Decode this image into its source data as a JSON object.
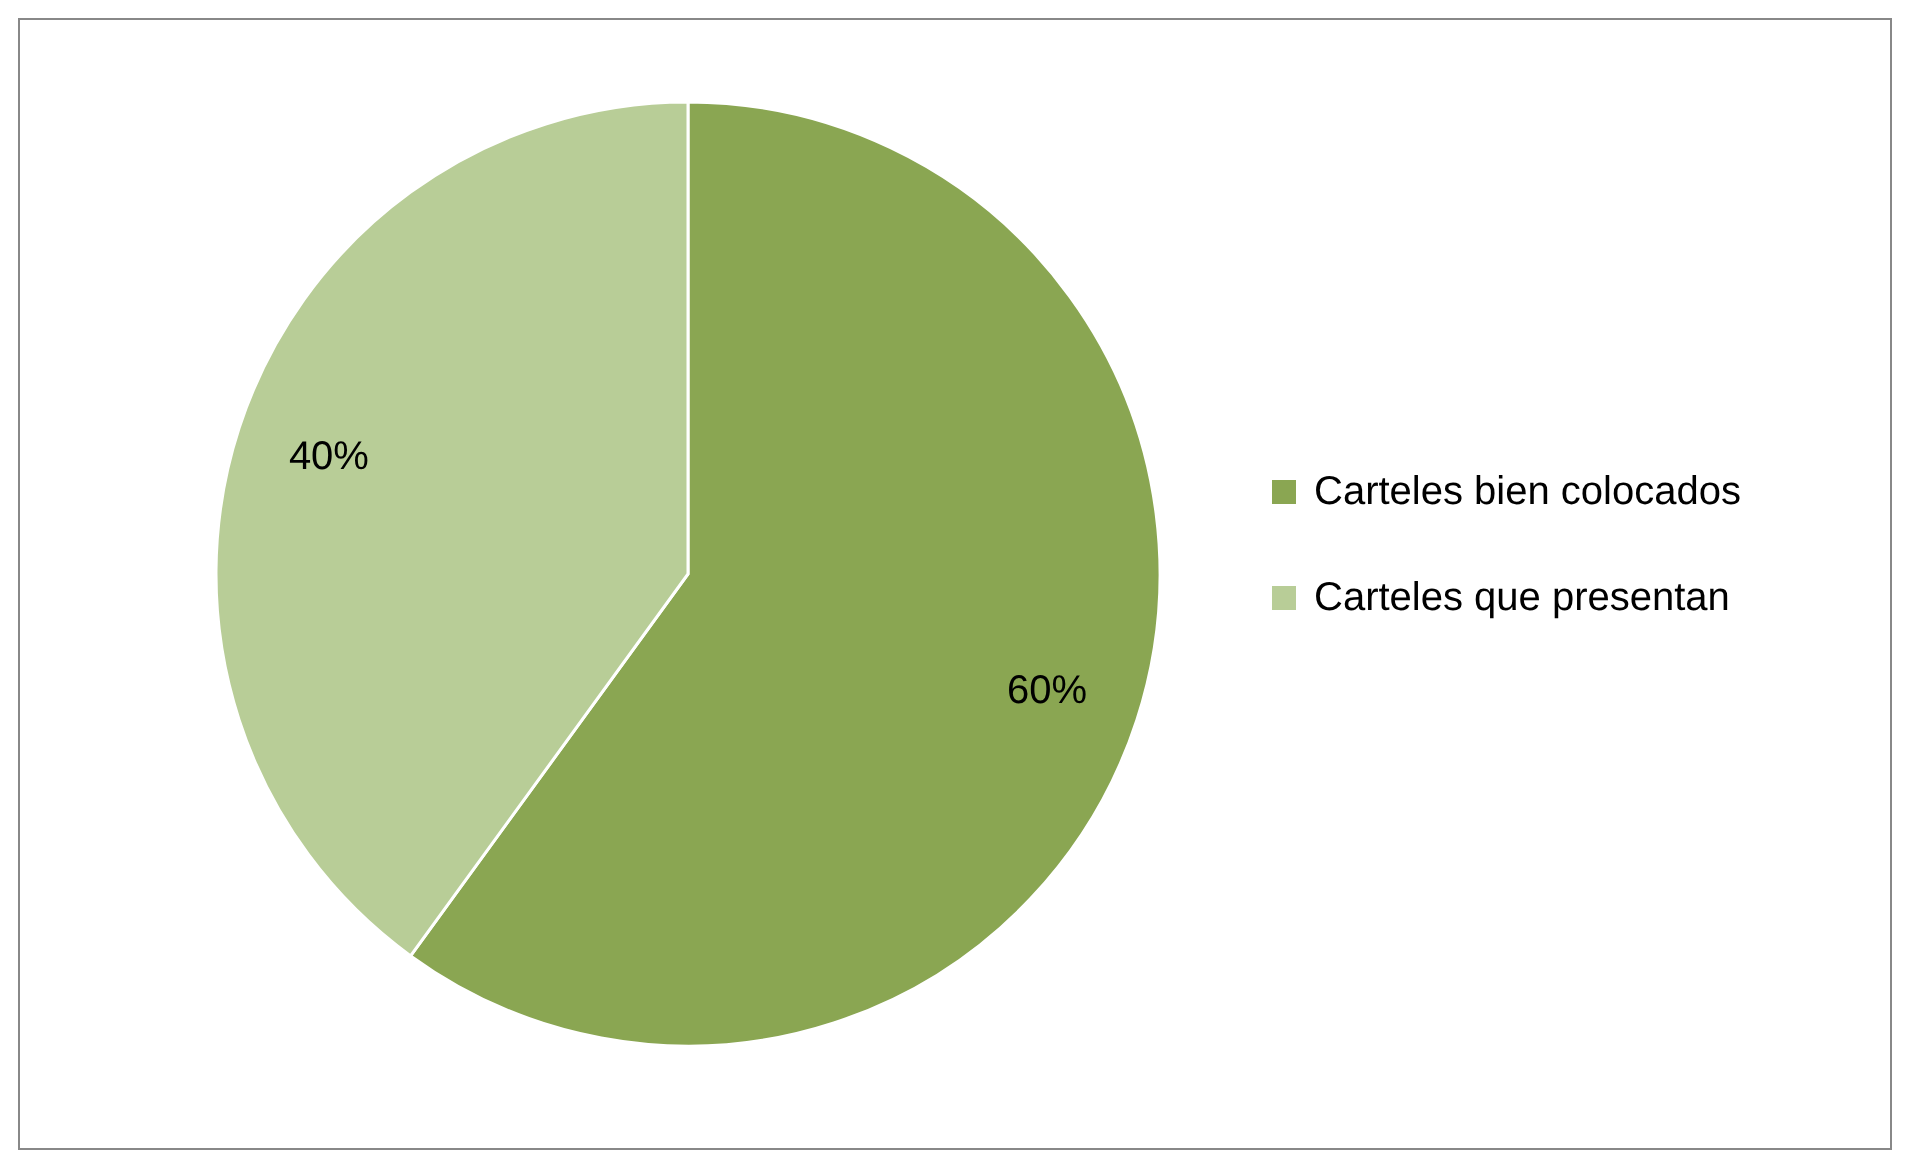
{
  "chart_data": {
    "type": "pie",
    "categories": [
      "Carteles bien colocados",
      "Carteles que presentan"
    ],
    "values": [
      60,
      40
    ],
    "colors": [
      "#8aa652",
      "#b8cd97"
    ],
    "value_labels": [
      "60%",
      "40%"
    ],
    "legend": "right"
  }
}
